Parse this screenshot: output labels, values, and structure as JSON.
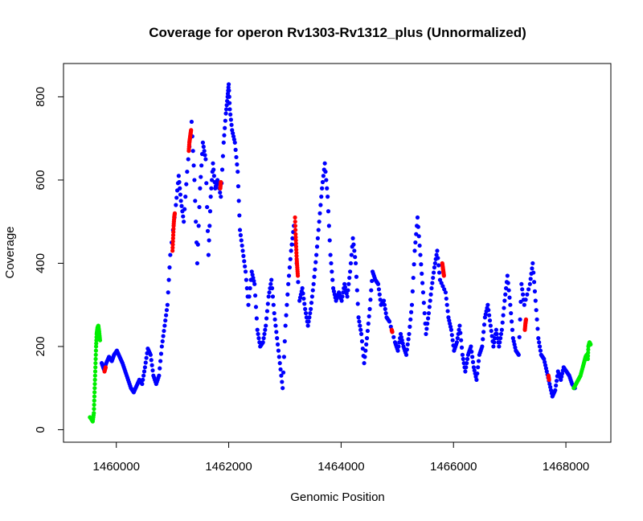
{
  "chart_data": {
    "type": "scatter",
    "title": "Coverage for operon Rv1303-Rv1312_plus (Unnormalized)",
    "xlabel": "Genomic Position",
    "ylabel": "Coverage",
    "xlim": [
      1459060,
      1468800
    ],
    "ylim": [
      -30,
      880
    ],
    "x_ticks": [
      1460000,
      1462000,
      1464000,
      1466000,
      1468000
    ],
    "x_tick_labels": [
      "1460000",
      "1462000",
      "1464000",
      "1466000",
      "1468000"
    ],
    "y_ticks": [
      0,
      200,
      400,
      600,
      800
    ],
    "y_tick_labels": [
      "0",
      "200",
      "400",
      "600",
      "800"
    ],
    "grid": false,
    "legend": "none",
    "series": [
      {
        "color": "#00ee00",
        "points": [
          [
            1459530,
            30
          ],
          [
            1459560,
            25
          ],
          [
            1459580,
            20
          ],
          [
            1459600,
            40
          ],
          [
            1459610,
            80
          ],
          [
            1459620,
            120
          ],
          [
            1459630,
            160
          ],
          [
            1459640,
            200
          ],
          [
            1459650,
            230
          ],
          [
            1459665,
            245
          ],
          [
            1459680,
            250
          ],
          [
            1459695,
            235
          ],
          [
            1459710,
            215
          ]
        ]
      },
      {
        "color": "#0000ff",
        "points": [
          [
            1459740,
            160
          ],
          [
            1459780,
            145
          ],
          [
            1459820,
            160
          ],
          [
            1459870,
            175
          ],
          [
            1459920,
            165
          ],
          [
            1459960,
            180
          ],
          [
            1460010,
            190
          ],
          [
            1460060,
            175
          ],
          [
            1460110,
            160
          ],
          [
            1460160,
            140
          ],
          [
            1460210,
            120
          ],
          [
            1460260,
            100
          ],
          [
            1460310,
            90
          ],
          [
            1460360,
            105
          ],
          [
            1460410,
            120
          ],
          [
            1460460,
            110
          ],
          [
            1460510,
            150
          ],
          [
            1460560,
            195
          ],
          [
            1460610,
            180
          ],
          [
            1460660,
            130
          ],
          [
            1460710,
            110
          ],
          [
            1460760,
            130
          ],
          [
            1460810,
            200
          ],
          [
            1460860,
            250
          ],
          [
            1460910,
            300
          ],
          [
            1460960,
            420
          ],
          [
            1461060,
            540
          ],
          [
            1461110,
            610
          ],
          [
            1461150,
            550
          ],
          [
            1461200,
            500
          ],
          [
            1461260,
            620
          ],
          [
            1461340,
            740
          ],
          [
            1461390,
            600
          ],
          [
            1461440,
            400
          ],
          [
            1461490,
            580
          ],
          [
            1461540,
            690
          ],
          [
            1461590,
            650
          ],
          [
            1461640,
            420
          ],
          [
            1461680,
            560
          ],
          [
            1461720,
            640
          ],
          [
            1461760,
            580
          ],
          [
            1461800,
            600
          ],
          [
            1461860,
            560
          ],
          [
            1461910,
            690
          ],
          [
            1461950,
            760
          ],
          [
            1461980,
            800
          ],
          [
            1462000,
            830
          ],
          [
            1462020,
            770
          ],
          [
            1462060,
            720
          ],
          [
            1462110,
            690
          ],
          [
            1462160,
            620
          ],
          [
            1462200,
            480
          ],
          [
            1462250,
            430
          ],
          [
            1462300,
            380
          ],
          [
            1462350,
            300
          ],
          [
            1462410,
            380
          ],
          [
            1462460,
            350
          ],
          [
            1462510,
            240
          ],
          [
            1462560,
            200
          ],
          [
            1462610,
            210
          ],
          [
            1462660,
            250
          ],
          [
            1462710,
            320
          ],
          [
            1462760,
            360
          ],
          [
            1462810,
            280
          ],
          [
            1462860,
            220
          ],
          [
            1462910,
            160
          ],
          [
            1462960,
            100
          ],
          [
            1463010,
            250
          ],
          [
            1463060,
            350
          ],
          [
            1463110,
            430
          ],
          [
            1463160,
            490
          ],
          [
            1463260,
            310
          ],
          [
            1463310,
            340
          ],
          [
            1463360,
            290
          ],
          [
            1463410,
            250
          ],
          [
            1463460,
            290
          ],
          [
            1463510,
            350
          ],
          [
            1463560,
            420
          ],
          [
            1463610,
            500
          ],
          [
            1463660,
            580
          ],
          [
            1463710,
            640
          ],
          [
            1463760,
            560
          ],
          [
            1463810,
            420
          ],
          [
            1463860,
            340
          ],
          [
            1463910,
            310
          ],
          [
            1463960,
            330
          ],
          [
            1464010,
            310
          ],
          [
            1464060,
            350
          ],
          [
            1464110,
            320
          ],
          [
            1464160,
            380
          ],
          [
            1464210,
            460
          ],
          [
            1464260,
            400
          ],
          [
            1464310,
            270
          ],
          [
            1464360,
            230
          ],
          [
            1464410,
            160
          ],
          [
            1464460,
            220
          ],
          [
            1464510,
            290
          ],
          [
            1464560,
            380
          ],
          [
            1464610,
            360
          ],
          [
            1464660,
            350
          ],
          [
            1464710,
            300
          ],
          [
            1464760,
            310
          ],
          [
            1464810,
            270
          ],
          [
            1464860,
            260
          ],
          [
            1464960,
            210
          ],
          [
            1465010,
            190
          ],
          [
            1465060,
            230
          ],
          [
            1465110,
            200
          ],
          [
            1465160,
            180
          ],
          [
            1465210,
            230
          ],
          [
            1465260,
            300
          ],
          [
            1465310,
            430
          ],
          [
            1465360,
            510
          ],
          [
            1465410,
            420
          ],
          [
            1465460,
            330
          ],
          [
            1465510,
            230
          ],
          [
            1465560,
            280
          ],
          [
            1465610,
            340
          ],
          [
            1465660,
            390
          ],
          [
            1465710,
            430
          ],
          [
            1465760,
            360
          ],
          [
            1465860,
            330
          ],
          [
            1465910,
            270
          ],
          [
            1465960,
            240
          ],
          [
            1466010,
            190
          ],
          [
            1466060,
            210
          ],
          [
            1466110,
            250
          ],
          [
            1466160,
            180
          ],
          [
            1466210,
            140
          ],
          [
            1466260,
            180
          ],
          [
            1466310,
            200
          ],
          [
            1466360,
            150
          ],
          [
            1466410,
            120
          ],
          [
            1466460,
            180
          ],
          [
            1466510,
            200
          ],
          [
            1466560,
            270
          ],
          [
            1466610,
            300
          ],
          [
            1466660,
            250
          ],
          [
            1466710,
            200
          ],
          [
            1466760,
            240
          ],
          [
            1466810,
            200
          ],
          [
            1466860,
            240
          ],
          [
            1466910,
            310
          ],
          [
            1466960,
            370
          ],
          [
            1467010,
            300
          ],
          [
            1467060,
            220
          ],
          [
            1467110,
            190
          ],
          [
            1467160,
            180
          ],
          [
            1467210,
            350
          ],
          [
            1467260,
            300
          ],
          [
            1467360,
            350
          ],
          [
            1467410,
            400
          ],
          [
            1467460,
            310
          ],
          [
            1467510,
            220
          ],
          [
            1467560,
            180
          ],
          [
            1467610,
            170
          ],
          [
            1467660,
            140
          ],
          [
            1467710,
            110
          ],
          [
            1467760,
            80
          ],
          [
            1467810,
            95
          ],
          [
            1467860,
            140
          ],
          [
            1467910,
            120
          ],
          [
            1467960,
            150
          ],
          [
            1468010,
            140
          ],
          [
            1468060,
            130
          ],
          [
            1468110,
            110
          ],
          [
            1468160,
            100
          ]
        ]
      },
      {
        "color": "#ff0000",
        "points": [
          [
            1459790,
            140
          ],
          [
            1459810,
            150
          ],
          [
            1461000,
            430
          ],
          [
            1461010,
            460
          ],
          [
            1461020,
            490
          ],
          [
            1461030,
            510
          ],
          [
            1461040,
            520
          ],
          [
            1461290,
            670
          ],
          [
            1461300,
            690
          ],
          [
            1461310,
            700
          ],
          [
            1461320,
            710
          ],
          [
            1461330,
            720
          ],
          [
            1461850,
            580
          ],
          [
            1461860,
            595
          ],
          [
            1463180,
            510
          ],
          [
            1463190,
            470
          ],
          [
            1463200,
            440
          ],
          [
            1463210,
            410
          ],
          [
            1463220,
            390
          ],
          [
            1463230,
            370
          ],
          [
            1464900,
            240
          ],
          [
            1464910,
            235
          ],
          [
            1465800,
            400
          ],
          [
            1465810,
            390
          ],
          [
            1465820,
            380
          ],
          [
            1465830,
            370
          ],
          [
            1467270,
            240
          ],
          [
            1467280,
            255
          ],
          [
            1467290,
            265
          ],
          [
            1467690,
            130
          ],
          [
            1467700,
            120
          ]
        ]
      },
      {
        "color": "#00ee00",
        "points": [
          [
            1468140,
            100
          ],
          [
            1468180,
            110
          ],
          [
            1468220,
            120
          ],
          [
            1468260,
            130
          ],
          [
            1468300,
            150
          ],
          [
            1468330,
            165
          ],
          [
            1468350,
            175
          ],
          [
            1468370,
            180
          ],
          [
            1468390,
            170
          ],
          [
            1468400,
            200
          ],
          [
            1468420,
            210
          ],
          [
            1468440,
            205
          ]
        ]
      }
    ]
  }
}
